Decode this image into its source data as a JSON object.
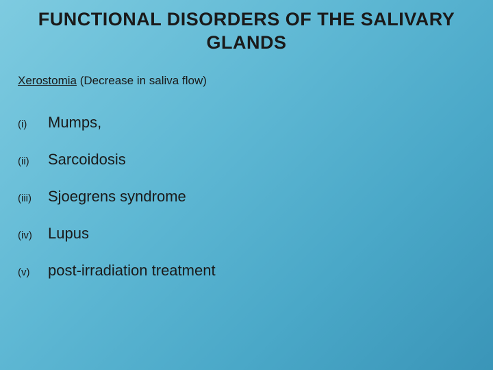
{
  "slide": {
    "title": "FUNCTIONAL DISORDERS OF THE SALIVARY GLANDS",
    "subtitle_underlined": "Xerostomia",
    "subtitle_rest": " (Decrease in saliva flow)",
    "items": [
      {
        "marker": "(i)",
        "label": "Mumps,"
      },
      {
        "marker": "(ii)",
        "label": "Sarcoidosis"
      },
      {
        "marker": "(iii)",
        "label": "Sjoegrens syndrome"
      },
      {
        "marker": "(iv)",
        "label": "Lupus"
      },
      {
        "marker": "(v)",
        "label": "post-irradiation treatment"
      }
    ],
    "style": {
      "background_gradient_start": "#7ecbe0",
      "background_gradient_mid": "#5fb8d4",
      "background_gradient_end": "#3a95b8",
      "title_fontsize": 27,
      "title_weight": "bold",
      "title_color": "#1a1a1a",
      "subtitle_fontsize": 17,
      "subtitle_color": "#1a1a1a",
      "marker_fontsize": 15,
      "label_fontsize": 22,
      "text_color": "#1a1a1a",
      "font_family": "Arial"
    }
  }
}
